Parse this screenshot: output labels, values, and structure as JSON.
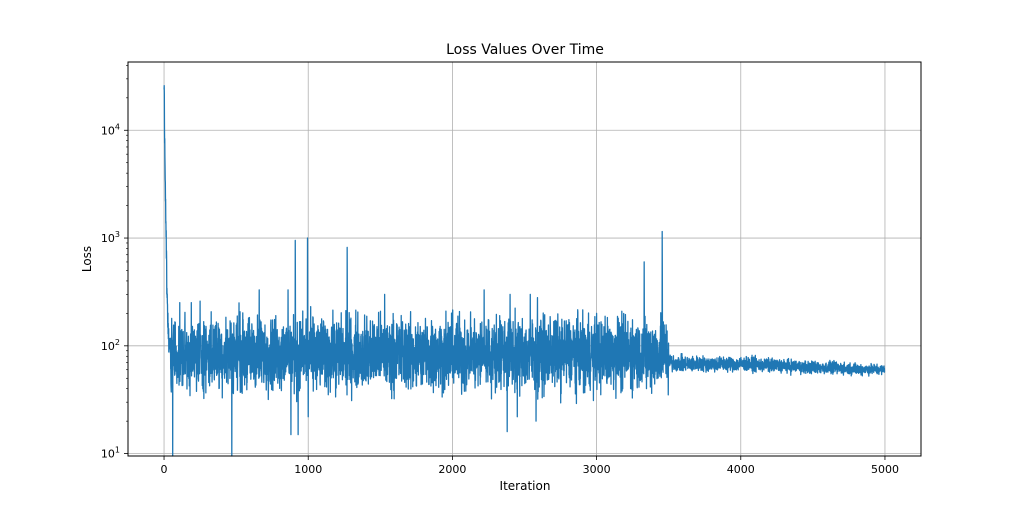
{
  "chart_data": {
    "type": "line",
    "title": "Loss Values Over Time",
    "xlabel": "Iteration",
    "ylabel": "Loss",
    "xlim": [
      -250,
      5250
    ],
    "ylim": [
      9.5,
      43000
    ],
    "yscale": "log",
    "grid": true,
    "x_ticks": [
      0,
      1000,
      2000,
      3000,
      4000,
      5000
    ],
    "x_tick_labels": [
      "0",
      "1000",
      "2000",
      "3000",
      "4000",
      "5000"
    ],
    "y_ticks": [
      10,
      100,
      1000,
      10000
    ],
    "y_tick_labels": [
      {
        "base": "10",
        "exp": "1"
      },
      {
        "base": "10",
        "exp": "2"
      },
      {
        "base": "10",
        "exp": "3"
      },
      {
        "base": "10",
        "exp": "4"
      }
    ],
    "line_color": "#1f77b4",
    "series": [
      {
        "iterations": 5000,
        "keypoints": [
          [
            0,
            30000
          ],
          [
            3,
            12000
          ],
          [
            6,
            6000
          ],
          [
            10,
            2500
          ],
          [
            15,
            900
          ],
          [
            20,
            300
          ],
          [
            30,
            120
          ],
          [
            45,
            90
          ],
          [
            60,
            10
          ],
          [
            80,
            70
          ],
          [
            120,
            100
          ],
          [
            200,
            90
          ],
          [
            300,
            80
          ],
          [
            400,
            85
          ],
          [
            470,
            8
          ],
          [
            500,
            90
          ],
          [
            700,
            100
          ],
          [
            910,
            950
          ],
          [
            925,
            120
          ],
          [
            995,
            1000
          ],
          [
            1010,
            110
          ],
          [
            1270,
            820
          ],
          [
            1290,
            100
          ],
          [
            1500,
            80
          ],
          [
            1800,
            75
          ],
          [
            2200,
            80
          ],
          [
            2380,
            16
          ],
          [
            2400,
            80
          ],
          [
            2600,
            75
          ],
          [
            3000,
            80
          ],
          [
            3300,
            75
          ],
          [
            3450,
            1150
          ],
          [
            3480,
            80
          ],
          [
            3500,
            70
          ],
          [
            3600,
            68
          ],
          [
            4000,
            68
          ],
          [
            4500,
            63
          ],
          [
            5000,
            60
          ]
        ],
        "spikes_up": [
          [
            910,
            950
          ],
          [
            995,
            1000
          ],
          [
            1270,
            820
          ],
          [
            3330,
            600
          ],
          [
            3455,
            1150
          ],
          [
            2220,
            330
          ],
          [
            2400,
            300
          ],
          [
            2540,
            300
          ],
          [
            2590,
            280
          ],
          [
            3000,
            200
          ],
          [
            660,
            330
          ],
          [
            860,
            330
          ],
          [
            1530,
            300
          ],
          [
            250,
            260
          ],
          [
            520,
            250
          ]
        ],
        "spikes_down": [
          [
            5,
            9
          ],
          [
            60,
            9
          ],
          [
            470,
            8
          ],
          [
            2380,
            16
          ],
          [
            2450,
            22
          ],
          [
            2580,
            20
          ],
          [
            930,
            15
          ],
          [
            880,
            15
          ],
          [
            1000,
            22
          ]
        ]
      }
    ]
  }
}
